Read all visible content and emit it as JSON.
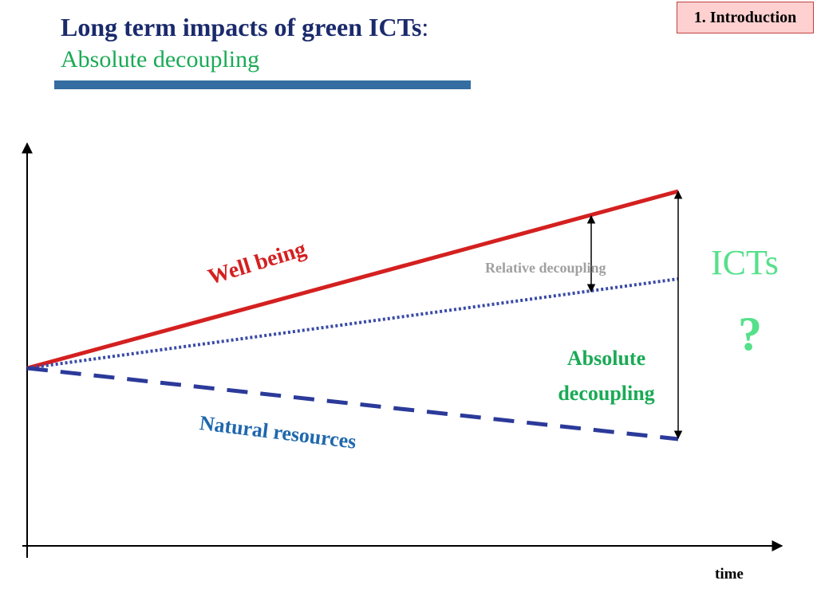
{
  "slide": {
    "title_main": "Long term impacts of green ICTs",
    "title_colon": ":",
    "subtitle": "Absolute decoupling",
    "section_badge": "1. Introduction"
  },
  "diagram": {
    "x_axis_label": "time",
    "series_labels": {
      "well_being": "Well being",
      "natural_resources": "Natural resources"
    },
    "gap_labels": {
      "relative": "Relative decoupling",
      "absolute_line1": "Absolute",
      "absolute_line2": "decoupling"
    },
    "side_labels": {
      "icts": "ICTs",
      "question": "?"
    },
    "colors": {
      "title": "#1a2a6c",
      "subtitle": "#1aaa55",
      "rule": "#356ca1",
      "badge_bg": "#ffd0d0",
      "well_being_line": "#d42020",
      "dotted_line": "#3a4aa8",
      "dashed_line": "#2b3a9a",
      "icts": "#55e08a",
      "relative_label": "#a0a0a0",
      "natural_resources_label": "#1f68ad"
    }
  }
}
